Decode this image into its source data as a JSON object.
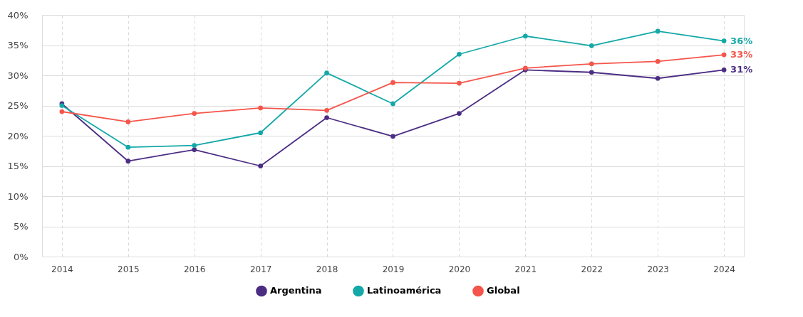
{
  "chart_data": {
    "type": "line",
    "categories": [
      "2014",
      "2015",
      "2016",
      "2017",
      "2018",
      "2019",
      "2020",
      "2021",
      "2022",
      "2023",
      "2024"
    ],
    "series": [
      {
        "name": "Argentina",
        "color": "#4b2d83",
        "values": [
          25.3,
          15.8,
          17.7,
          15.0,
          23.0,
          19.9,
          23.7,
          30.9,
          30.5,
          29.5,
          30.9
        ],
        "value_labels": [
          null,
          null,
          null,
          null,
          null,
          null,
          null,
          null,
          null,
          null,
          "31%"
        ]
      },
      {
        "name": "Latinoamérica",
        "color": "#14a8a8",
        "values": [
          25.0,
          18.1,
          18.4,
          20.5,
          30.4,
          25.3,
          33.5,
          36.5,
          34.9,
          37.3,
          35.7
        ],
        "value_labels": [
          null,
          null,
          null,
          null,
          null,
          null,
          null,
          null,
          null,
          null,
          "36%"
        ]
      },
      {
        "name": "Global",
        "color": "#f5554a",
        "values": [
          24.0,
          22.3,
          23.7,
          24.6,
          24.2,
          28.8,
          28.7,
          31.2,
          31.9,
          32.3,
          33.4
        ],
        "value_labels": [
          null,
          null,
          null,
          null,
          null,
          null,
          null,
          null,
          null,
          null,
          "33%"
        ]
      }
    ],
    "ylim": [
      0,
      40
    ],
    "yticks": [
      {
        "value": 0,
        "label": "0%"
      },
      {
        "value": 5,
        "label": "5%"
      },
      {
        "value": 10,
        "label": "10%"
      },
      {
        "value": 15,
        "label": "15%"
      },
      {
        "value": 20,
        "label": "20%"
      },
      {
        "value": 25,
        "label": "25%"
      },
      {
        "value": 30,
        "label": "30%"
      },
      {
        "value": 35,
        "label": "35%"
      },
      {
        "value": 40,
        "label": "40%"
      }
    ],
    "grid": true,
    "legend": "bottom",
    "marker": "circle",
    "line_style": "solid"
  }
}
